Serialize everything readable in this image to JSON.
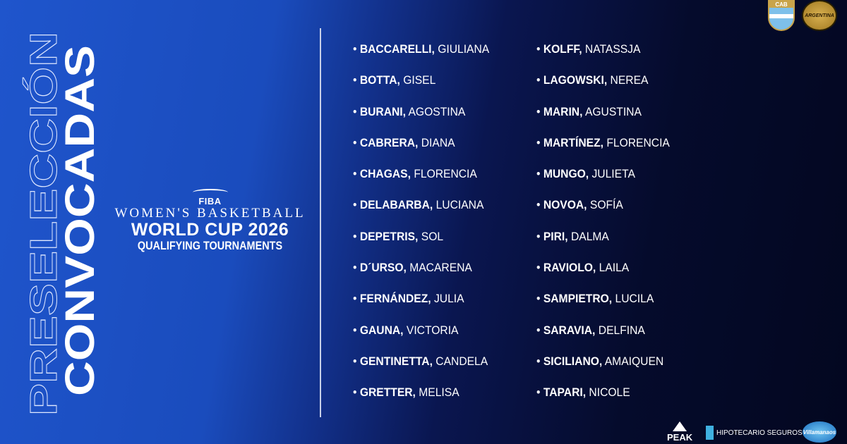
{
  "title": {
    "outline": "PRESELECCIÓN",
    "filled": "CONVOCADAS"
  },
  "event_logo": {
    "org": "FIBA",
    "line1": "WOMEN'S BASKETBALL",
    "line2": "WORLD CUP 2026",
    "line3": "QUALIFYING TOURNAMENTS"
  },
  "top_logos": {
    "cab": "CAB",
    "argentina": "ARGENTINA"
  },
  "players_col1": [
    {
      "surname": "BACCARELLI,",
      "name": "GIULIANA"
    },
    {
      "surname": "BOTTA,",
      "name": "GISEL"
    },
    {
      "surname": "BURANI,",
      "name": "AGOSTINA"
    },
    {
      "surname": "CABRERA,",
      "name": "DIANA"
    },
    {
      "surname": "CHAGAS,",
      "name": "FLORENCIA"
    },
    {
      "surname": "DELABARBA,",
      "name": "LUCIANA"
    },
    {
      "surname": "DEPETRIS,",
      "name": "SOL"
    },
    {
      "surname": "D´URSO,",
      "name": "MACARENA"
    },
    {
      "surname": "FERNÁNDEZ,",
      "name": "JULIA"
    },
    {
      "surname": "GAUNA,",
      "name": "VICTORIA"
    },
    {
      "surname": "GENTINETTA,",
      "name": "CANDELA"
    },
    {
      "surname": "GRETTER,",
      "name": "MELISA"
    }
  ],
  "players_col2": [
    {
      "surname": "KOLFF,",
      "name": "NATASSJA"
    },
    {
      "surname": "LAGOWSKI,",
      "name": "NEREA"
    },
    {
      "surname": "MARIN,",
      "name": "AGUSTINA"
    },
    {
      "surname": "MARTÍNEZ,",
      "name": "FLORENCIA"
    },
    {
      "surname": "MUNGO,",
      "name": "JULIETA"
    },
    {
      "surname": "NOVOA,",
      "name": "SOFÍA"
    },
    {
      "surname": "PIRI,",
      "name": "DALMA"
    },
    {
      "surname": "RAVIOLO,",
      "name": "LAILA"
    },
    {
      "surname": "SAMPIETRO,",
      "name": "LUCILA"
    },
    {
      "surname": "SARAVIA,",
      "name": "DELFINA"
    },
    {
      "surname": "SICILIANO,",
      "name": "AMAIQUEN"
    },
    {
      "surname": "TAPARI,",
      "name": "NICOLE"
    }
  ],
  "sponsors": {
    "peak": "PEAK",
    "hipotecario": "HIPOTECARIO SEGUROS",
    "villamanaos": "Villamanaos"
  },
  "colors": {
    "blue": "#1f55cc",
    "navy": "#030720",
    "text": "#ffffff"
  }
}
